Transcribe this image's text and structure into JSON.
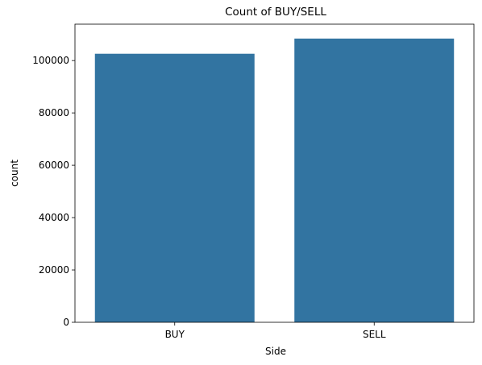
{
  "chart_data": {
    "type": "bar",
    "title": "Count of BUY/SELL",
    "xlabel": "Side",
    "ylabel": "count",
    "categories": [
      "BUY",
      "SELL"
    ],
    "values": [
      102600,
      108400
    ],
    "ylim": [
      0,
      113900
    ],
    "yticks": [
      {
        "value": 0,
        "label": "0"
      },
      {
        "value": 20000,
        "label": "20000"
      },
      {
        "value": 40000,
        "label": "40000"
      },
      {
        "value": 60000,
        "label": "60000"
      },
      {
        "value": 80000,
        "label": "80000"
      },
      {
        "value": 100000,
        "label": "100000"
      }
    ],
    "grid": false,
    "bar_color": "#3274a1"
  }
}
